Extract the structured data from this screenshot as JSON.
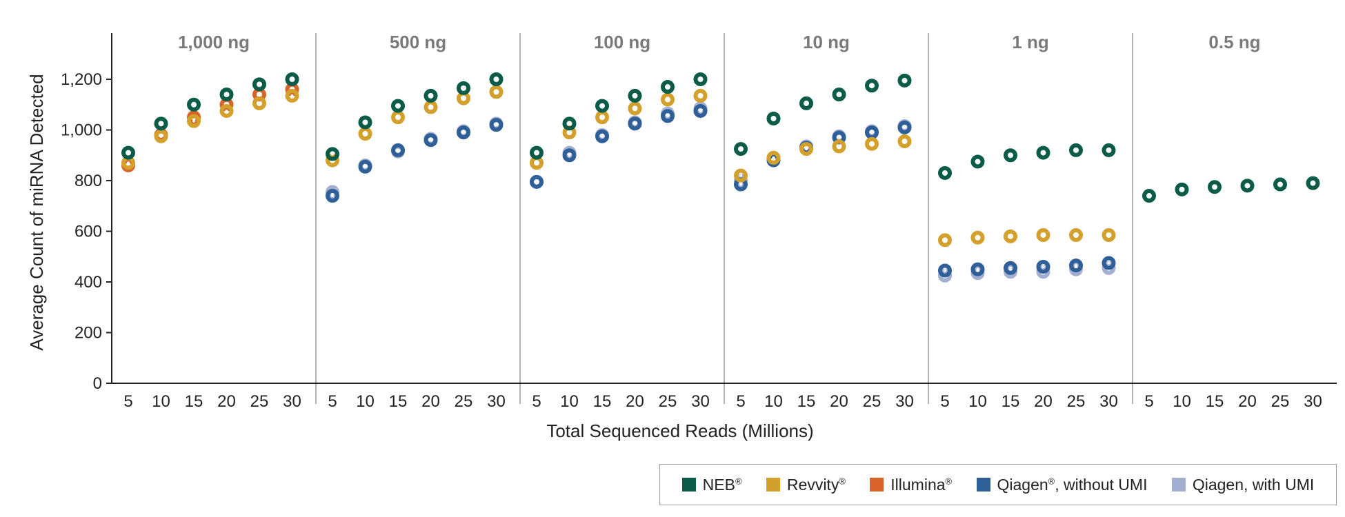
{
  "chart_data": {
    "type": "scatter",
    "ylabel": "Average Count of miRNA Detected",
    "xlabel": "Total Sequenced Reads (Millions)",
    "ylim": [
      0,
      1300
    ],
    "yticks": [
      "0",
      "200",
      "400",
      "600",
      "800",
      "1,000",
      "1,200"
    ],
    "ytick_values": [
      0,
      200,
      400,
      600,
      800,
      1000,
      1200
    ],
    "xticks": [
      "5",
      "10",
      "15",
      "20",
      "25",
      "30"
    ],
    "x": [
      5,
      10,
      15,
      20,
      25,
      30
    ],
    "legend_position": "bottom-right",
    "series_info": [
      {
        "key": "neb",
        "name": "NEB",
        "mark": "®",
        "color": "#0a5c48"
      },
      {
        "key": "revvity",
        "name": "Revvity",
        "mark": "®",
        "color": "#d4a02c"
      },
      {
        "key": "illumina",
        "name": "Illumina",
        "mark": "®",
        "color": "#d9642a"
      },
      {
        "key": "qiagen_no_umi",
        "name": "Qiagen",
        "mark": "®",
        "suffix": ", without UMI",
        "color": "#2f5f98"
      },
      {
        "key": "qiagen_umi",
        "name": "Qiagen, with UMI",
        "mark": "",
        "color": "#a3afd0"
      }
    ],
    "panels": [
      {
        "title": "1,000 ng",
        "series": {
          "illumina": [
            860,
            980,
            1050,
            1100,
            1140,
            1160
          ],
          "revvity": [
            870,
            975,
            1035,
            1075,
            1105,
            1135
          ],
          "neb": [
            910,
            1025,
            1100,
            1140,
            1180,
            1200
          ]
        }
      },
      {
        "title": "500 ng",
        "series": {
          "qiagen_umi": [
            755,
            860,
            915,
            965,
            995,
            1025
          ],
          "qiagen_no_umi": [
            740,
            855,
            920,
            960,
            990,
            1020
          ],
          "revvity": [
            880,
            985,
            1050,
            1090,
            1125,
            1150
          ],
          "neb": [
            905,
            1030,
            1095,
            1135,
            1165,
            1200
          ]
        }
      },
      {
        "title": "100 ng",
        "series": {
          "qiagen_umi": [
            795,
            910,
            980,
            1030,
            1065,
            1085
          ],
          "qiagen_no_umi": [
            795,
            900,
            975,
            1025,
            1055,
            1075
          ],
          "revvity": [
            870,
            990,
            1050,
            1085,
            1120,
            1135
          ],
          "neb": [
            910,
            1025,
            1095,
            1135,
            1170,
            1200
          ]
        }
      },
      {
        "title": "10 ng",
        "series": {
          "qiagen_umi": [
            800,
            890,
            935,
            975,
            995,
            1015
          ],
          "qiagen_no_umi": [
            785,
            880,
            930,
            970,
            990,
            1010
          ],
          "revvity": [
            820,
            890,
            925,
            935,
            945,
            955
          ],
          "neb": [
            925,
            1045,
            1105,
            1140,
            1175,
            1195
          ]
        }
      },
      {
        "title": "1 ng",
        "series": {
          "qiagen_umi": [
            425,
            435,
            440,
            440,
            450,
            455
          ],
          "qiagen_no_umi": [
            445,
            450,
            455,
            460,
            465,
            475
          ],
          "revvity": [
            565,
            575,
            580,
            585,
            585,
            585
          ],
          "neb": [
            830,
            875,
            900,
            910,
            920,
            920
          ]
        }
      },
      {
        "title": "0.5 ng",
        "series": {
          "neb": [
            740,
            765,
            775,
            780,
            785,
            790
          ]
        }
      }
    ]
  }
}
